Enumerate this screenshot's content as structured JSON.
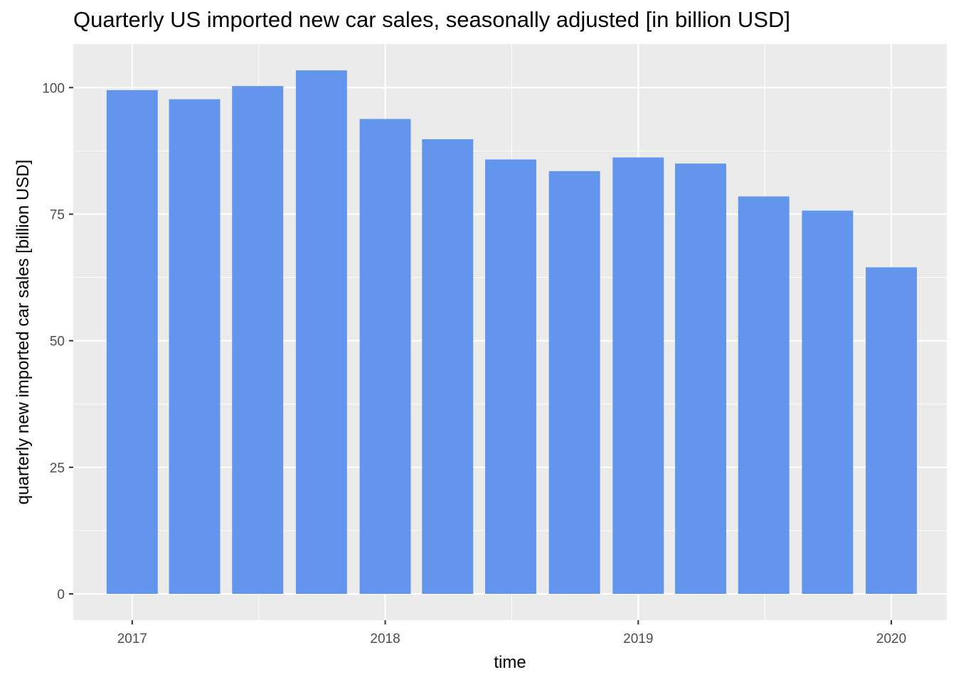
{
  "chart_data": {
    "type": "bar",
    "title": "Quarterly US imported new car sales, seasonally adjusted [in billion USD]",
    "xlabel": "time",
    "ylabel": "quarterly new imported car sales [billion USD]",
    "x": [
      "2017-01-01",
      "2017-04-01",
      "2017-07-01",
      "2017-10-01",
      "2018-01-01",
      "2018-04-01",
      "2018-07-01",
      "2018-10-01",
      "2019-01-01",
      "2019-04-01",
      "2019-07-01",
      "2019-10-01",
      "2020-01-01"
    ],
    "values": [
      99.5,
      97.7,
      100.3,
      103.4,
      93.8,
      89.8,
      85.8,
      83.5,
      86.2,
      85.0,
      78.5,
      75.7,
      64.5
    ],
    "x_ticks": [
      "2017",
      "2018",
      "2019",
      "2020"
    ],
    "x_tick_dates": [
      "2017-01-01",
      "2018-01-01",
      "2019-01-01",
      "2020-01-01"
    ],
    "y_ticks": [
      0,
      25,
      50,
      75,
      100
    ],
    "ylim": [
      -5.2,
      108.6
    ],
    "xlim": [
      "2016-10-08",
      "2020-03-21"
    ],
    "grid": true,
    "bar_color": "#6495ED",
    "panel_color": "#EBEBEB",
    "grid_color": "#FFFFFF"
  }
}
